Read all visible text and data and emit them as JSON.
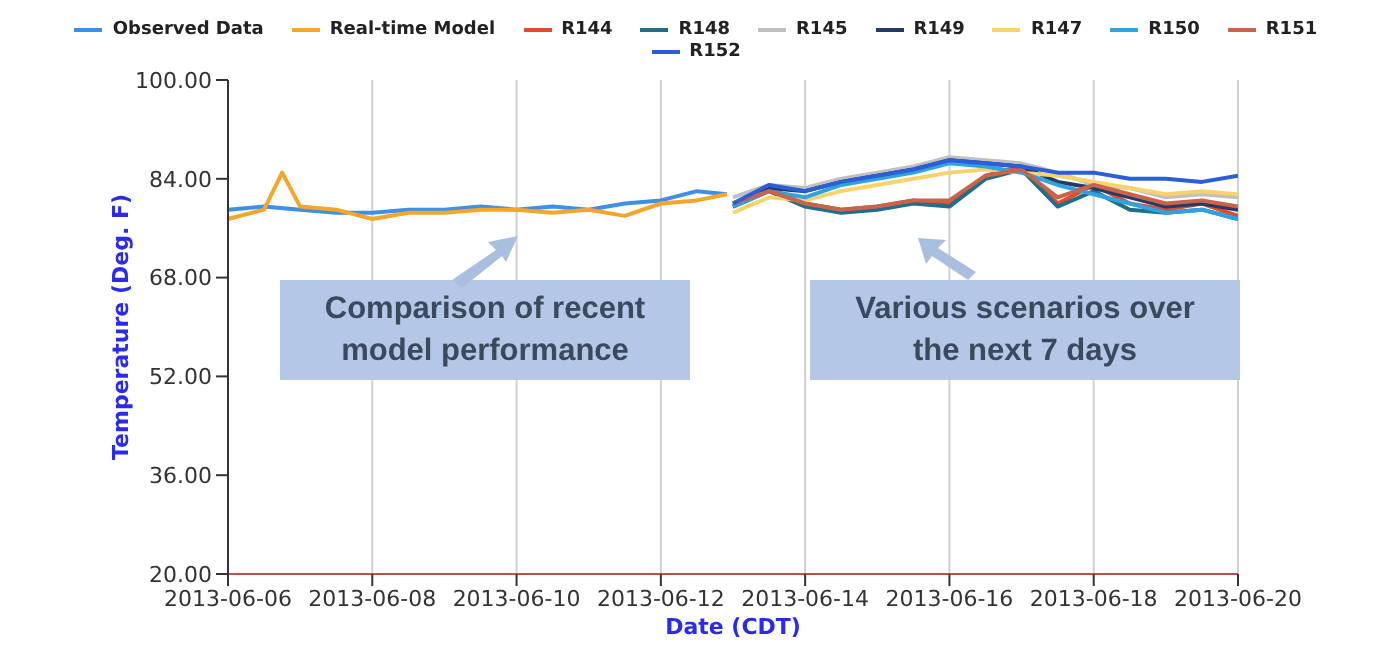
{
  "chart_data": {
    "type": "line",
    "xlabel": "Date (CDT)",
    "ylabel": "Temperature (Deg. F)",
    "xlim": [
      "2013-06-06",
      "2013-06-20"
    ],
    "xticks": [
      {
        "value": "2013-06-06",
        "label": "2013-06-06"
      },
      {
        "value": "2013-06-08",
        "label": "2013-06-08"
      },
      {
        "value": "2013-06-10",
        "label": "2013-06-10"
      },
      {
        "value": "2013-06-12",
        "label": "2013-06-12"
      },
      {
        "value": "2013-06-14",
        "label": "2013-06-14"
      },
      {
        "value": "2013-06-16",
        "label": "2013-06-16"
      },
      {
        "value": "2013-06-18",
        "label": "2013-06-18"
      },
      {
        "value": "2013-06-20",
        "label": "2013-06-20"
      }
    ],
    "ylim": [
      20,
      100
    ],
    "yticks": [
      {
        "value": 20,
        "label": "20.00"
      },
      {
        "value": 36,
        "label": "36.00"
      },
      {
        "value": 52,
        "label": "52.00"
      },
      {
        "value": 68,
        "label": "68.00"
      },
      {
        "value": 84,
        "label": "84.00"
      },
      {
        "value": 100,
        "label": "100.00"
      }
    ],
    "grid": "x",
    "legend": "top",
    "marker": "none",
    "line_style": "solid",
    "annotations": [
      "Comparison of recent model performance",
      "Various scenarios over the next 7 days"
    ],
    "series": [
      {
        "name": "Observed Data",
        "color": "#3d8fe8",
        "x": [
          "2013-06-06T00:00",
          "2013-06-06T12:00",
          "2013-06-07T00:00",
          "2013-06-07T12:00",
          "2013-06-08T00:00",
          "2013-06-08T12:00",
          "2013-06-09T00:00",
          "2013-06-09T12:00",
          "2013-06-10T00:00",
          "2013-06-10T12:00",
          "2013-06-11T00:00",
          "2013-06-11T12:00",
          "2013-06-12T00:00",
          "2013-06-12T12:00",
          "2013-06-12T22:00"
        ],
        "values": [
          79,
          79.5,
          79,
          78.5,
          78.5,
          79,
          79,
          79.5,
          79,
          79.5,
          79,
          80,
          80.5,
          82,
          81.5
        ]
      },
      {
        "name": "Real-time Model",
        "color": "#f4a52a",
        "x": [
          "2013-06-06T00:00",
          "2013-06-06T12:00",
          "2013-06-06T18:00",
          "2013-06-07T00:00",
          "2013-06-07T12:00",
          "2013-06-08T00:00",
          "2013-06-08T12:00",
          "2013-06-09T00:00",
          "2013-06-09T12:00",
          "2013-06-10T00:00",
          "2013-06-10T12:00",
          "2013-06-11T00:00",
          "2013-06-11T12:00",
          "2013-06-12T00:00",
          "2013-06-12T12:00",
          "2013-06-12T22:00"
        ],
        "values": [
          77.5,
          79,
          85,
          79.5,
          79,
          77.5,
          78.5,
          78.5,
          79,
          79,
          78.5,
          79,
          78,
          80,
          80.5,
          81.5
        ]
      },
      {
        "name": "R144",
        "color": "#e8492b",
        "x": [
          "2013-06-13",
          "2013-06-13T12:00",
          "2013-06-14",
          "2013-06-14T12:00",
          "2013-06-15",
          "2013-06-15T12:00",
          "2013-06-16",
          "2013-06-16T12:00",
          "2013-06-17",
          "2013-06-17T12:00",
          "2013-06-18",
          "2013-06-18T12:00",
          "2013-06-19",
          "2013-06-19T12:00",
          "2013-06-20"
        ],
        "values": [
          80,
          82.5,
          80,
          79,
          79.5,
          80.5,
          80,
          84.5,
          86,
          80,
          83,
          80,
          79,
          80,
          78
        ]
      },
      {
        "name": "R148",
        "color": "#1f6f8b",
        "x": [
          "2013-06-13",
          "2013-06-13T12:00",
          "2013-06-14",
          "2013-06-14T12:00",
          "2013-06-15",
          "2013-06-15T12:00",
          "2013-06-16",
          "2013-06-16T12:00",
          "2013-06-17",
          "2013-06-17T12:00",
          "2013-06-18",
          "2013-06-18T12:00",
          "2013-06-19",
          "2013-06-19T12:00",
          "2013-06-20"
        ],
        "values": [
          79.5,
          82,
          79.5,
          78.5,
          79,
          80,
          79.5,
          84,
          85.5,
          79.5,
          82,
          79,
          78.5,
          79,
          77.5
        ]
      },
      {
        "name": "R145",
        "color": "#c0c0c0",
        "x": [
          "2013-06-13",
          "2013-06-13T12:00",
          "2013-06-14",
          "2013-06-14T12:00",
          "2013-06-15",
          "2013-06-15T12:00",
          "2013-06-16",
          "2013-06-16T12:00",
          "2013-06-17",
          "2013-06-17T12:00",
          "2013-06-18",
          "2013-06-18T12:00",
          "2013-06-19",
          "2013-06-19T12:00",
          "2013-06-20"
        ],
        "values": [
          81,
          83,
          82.5,
          84,
          85,
          86,
          87.5,
          87,
          86.5,
          85,
          83,
          82.5,
          81,
          81.5,
          81
        ]
      },
      {
        "name": "R149",
        "color": "#253a66",
        "x": [
          "2013-06-13",
          "2013-06-13T12:00",
          "2013-06-14",
          "2013-06-14T12:00",
          "2013-06-15",
          "2013-06-15T12:00",
          "2013-06-16",
          "2013-06-16T12:00",
          "2013-06-17",
          "2013-06-17T12:00",
          "2013-06-18",
          "2013-06-18T12:00",
          "2013-06-19",
          "2013-06-19T12:00",
          "2013-06-20"
        ],
        "values": [
          79.5,
          82.5,
          82,
          83.5,
          84.5,
          85.5,
          87,
          86.5,
          86,
          83.5,
          82.5,
          81,
          79.5,
          80,
          79
        ]
      },
      {
        "name": "R147",
        "color": "#f8d36b",
        "x": [
          "2013-06-13",
          "2013-06-13T12:00",
          "2013-06-14",
          "2013-06-14T12:00",
          "2013-06-15",
          "2013-06-15T12:00",
          "2013-06-16",
          "2013-06-16T12:00",
          "2013-06-17",
          "2013-06-17T12:00",
          "2013-06-18",
          "2013-06-18T12:00",
          "2013-06-19",
          "2013-06-19T12:00",
          "2013-06-20"
        ],
        "values": [
          78.5,
          81,
          80.5,
          82,
          83,
          84,
          85,
          85.5,
          85,
          84.5,
          83.5,
          82.5,
          81.5,
          82,
          81.5
        ]
      },
      {
        "name": "R150",
        "color": "#2ea3e0",
        "x": [
          "2013-06-13",
          "2013-06-13T12:00",
          "2013-06-14",
          "2013-06-14T12:00",
          "2013-06-15",
          "2013-06-15T12:00",
          "2013-06-16",
          "2013-06-16T12:00",
          "2013-06-17",
          "2013-06-17T12:00",
          "2013-06-18",
          "2013-06-18T12:00",
          "2013-06-19",
          "2013-06-19T12:00",
          "2013-06-20"
        ],
        "values": [
          79.5,
          82,
          81,
          83,
          84,
          85,
          86.5,
          86,
          85,
          83,
          81.5,
          80,
          78.5,
          79,
          77.5
        ]
      },
      {
        "name": "R151",
        "color": "#c8644a",
        "x": [
          "2013-06-13",
          "2013-06-13T12:00",
          "2013-06-14",
          "2013-06-14T12:00",
          "2013-06-15",
          "2013-06-15T12:00",
          "2013-06-16",
          "2013-06-16T12:00",
          "2013-06-17",
          "2013-06-17T12:00",
          "2013-06-18",
          "2013-06-18T12:00",
          "2013-06-19",
          "2013-06-19T12:00",
          "2013-06-20"
        ],
        "values": [
          80,
          82,
          80,
          79,
          79.5,
          80.5,
          80.5,
          84.5,
          85.5,
          81,
          83,
          81.5,
          80,
          80.5,
          79.5
        ]
      },
      {
        "name": "R152",
        "color": "#2a5fd8",
        "x": [
          "2013-06-13",
          "2013-06-13T12:00",
          "2013-06-14",
          "2013-06-14T12:00",
          "2013-06-15",
          "2013-06-15T12:00",
          "2013-06-16",
          "2013-06-16T12:00",
          "2013-06-17",
          "2013-06-17T12:00",
          "2013-06-18",
          "2013-06-18T12:00",
          "2013-06-19",
          "2013-06-19T12:00",
          "2013-06-20"
        ],
        "values": [
          80,
          83,
          82,
          83.5,
          84.5,
          85.5,
          87,
          86.5,
          86,
          85,
          85,
          84,
          84,
          83.5,
          84.5
        ]
      }
    ]
  }
}
